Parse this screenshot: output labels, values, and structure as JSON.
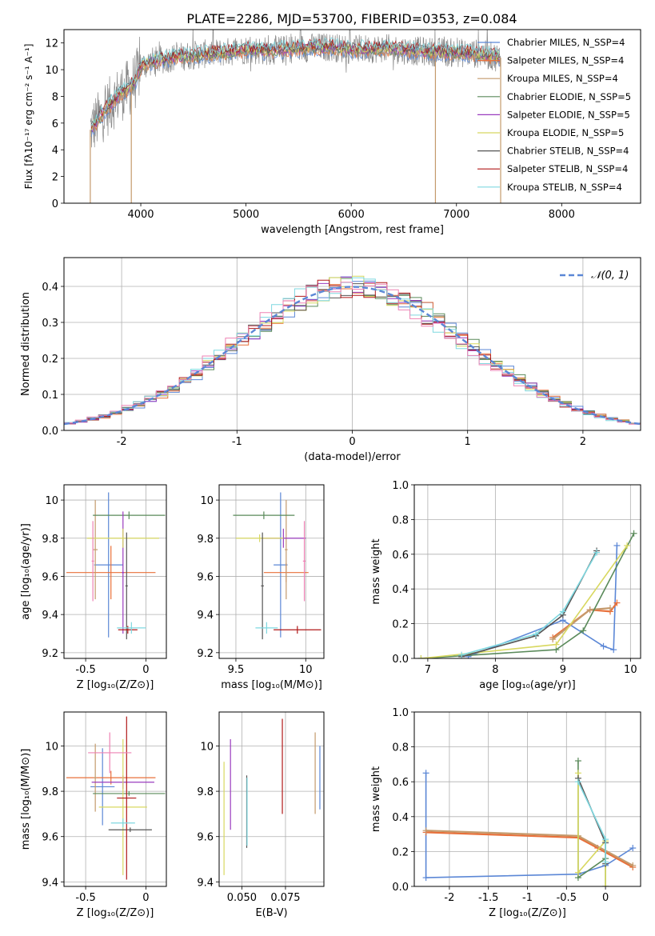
{
  "title": "PLATE=2286, MJD=53700, FIBERID=0353, z=0.084",
  "colors": {
    "c1": "#5b87d6",
    "c2": "#e8703a",
    "c3": "#c49a6c",
    "c4": "#5a8a5a",
    "c5": "#9a3cbf",
    "c6": "#d8d860",
    "c7": "#555555",
    "c8": "#b01818",
    "c9": "#7fd8e0",
    "gray": "#888888",
    "pink": "#ee82b4",
    "norm": "#5b87d6"
  },
  "chart_data": [
    {
      "id": "spectrum",
      "type": "line",
      "xlabel": "wavelength [Angstrom, rest frame]",
      "ylabel": "Flux [fλ10⁻¹⁷ erg cm⁻² s⁻¹ A⁻¹]",
      "xlim": [
        3270,
        8750
      ],
      "ylim": [
        0,
        13
      ],
      "xticks": [
        4000,
        5000,
        6000,
        7000,
        8000
      ],
      "yticks": [
        0,
        2,
        4,
        6,
        8,
        10,
        12
      ],
      "legend_position": "right",
      "series": [
        {
          "name": "Chabrier MILES, N_SSP=4",
          "color": "c1"
        },
        {
          "name": "Salpeter MILES, N_SSP=4",
          "color": "c2"
        },
        {
          "name": "Kroupa MILES, N_SSP=4",
          "color": "c3"
        },
        {
          "name": "Chabrier ELODIE, N_SSP=5",
          "color": "c4"
        },
        {
          "name": "Salpeter ELODIE, N_SSP=5",
          "color": "c5"
        },
        {
          "name": "Kroupa ELODIE, N_SSP=5",
          "color": "c6"
        },
        {
          "name": "Chabrier STELIB, N_SSP=4",
          "color": "c7"
        },
        {
          "name": "Salpeter STELIB, N_SSP=4",
          "color": "c8"
        },
        {
          "name": "Kroupa STELIB, N_SSP=4",
          "color": "c9"
        }
      ],
      "continuum": [
        [
          3520,
          5.5
        ],
        [
          3600,
          6.3
        ],
        [
          3700,
          7.3
        ],
        [
          3800,
          8.2
        ],
        [
          3900,
          8.7
        ],
        [
          3950,
          9.2
        ],
        [
          4000,
          10.2
        ],
        [
          4100,
          10.6
        ],
        [
          4300,
          10.9
        ],
        [
          4500,
          11.1
        ],
        [
          4800,
          11.3
        ],
        [
          5000,
          11.5
        ],
        [
          5200,
          11.4
        ],
        [
          5500,
          11.6
        ],
        [
          5800,
          11.7
        ],
        [
          6000,
          11.5
        ],
        [
          6300,
          11.6
        ],
        [
          6600,
          11.4
        ],
        [
          6900,
          11.3
        ],
        [
          7200,
          11.2
        ],
        [
          7420,
          10.9
        ]
      ]
    },
    {
      "id": "residuals",
      "type": "line",
      "xlabel": "(data-model)/error",
      "ylabel": "Normed distribution",
      "xlim": [
        -2.5,
        2.5
      ],
      "ylim": [
        0,
        0.48
      ],
      "xticks": [
        -2,
        -1,
        0,
        1,
        2
      ],
      "yticks": [
        0.0,
        0.1,
        0.2,
        0.3,
        0.4
      ],
      "grid": true,
      "legend": "𝒩(0, 1)",
      "legend_position": "top-right"
    },
    {
      "id": "age_vs_Z",
      "type": "scatter",
      "xlabel": "Z [log₁₀(Z/Z⊙)]",
      "ylabel": "age  [log₁₀(age/yr)]",
      "xlim": [
        -0.68,
        0.17
      ],
      "ylim": [
        9.17,
        10.08
      ],
      "xticks": [
        -0.5,
        0.0
      ],
      "yticks": [
        9.2,
        9.4,
        9.6,
        9.8,
        10.0
      ],
      "grid": true,
      "points": [
        {
          "x": -0.31,
          "xerr": 0.12,
          "y": 9.66,
          "yerr": 0.38,
          "color": "c1"
        },
        {
          "x": -0.29,
          "xerr": 0.37,
          "y": 9.62,
          "yerr": 0.14,
          "color": "c2"
        },
        {
          "x": -0.42,
          "xerr": 0.02,
          "y": 9.74,
          "yerr": 0.26,
          "color": "c3"
        },
        {
          "x": -0.14,
          "xerr": 0.3,
          "y": 9.92,
          "yerr": 0.02,
          "color": "c4"
        },
        {
          "x": -0.19,
          "xerr": 0.01,
          "y": 9.62,
          "yerr": 0.32,
          "color": "c5"
        },
        {
          "x": -0.19,
          "xerr": 0.3,
          "y": 9.8,
          "yerr": 0.05,
          "color": "c6"
        },
        {
          "x": -0.16,
          "xerr": 0.01,
          "y": 9.55,
          "yerr": 0.28,
          "color": "c7"
        },
        {
          "x": -0.15,
          "xerr": 0.08,
          "y": 9.32,
          "yerr": 0.02,
          "color": "c8"
        },
        {
          "x": -0.12,
          "xerr": 0.12,
          "y": 9.33,
          "yerr": 0.03,
          "color": "c9"
        },
        {
          "x": -0.44,
          "xerr": 0.01,
          "y": 9.68,
          "yerr": 0.21,
          "color": "pink"
        }
      ]
    },
    {
      "id": "age_vs_mass",
      "type": "scatter",
      "xlabel": "mass [log₁₀(M/M⊙)]",
      "ylabel": "",
      "xlim": [
        9.38,
        10.13
      ],
      "ylim": [
        9.17,
        10.08
      ],
      "xticks": [
        9.5,
        10.0
      ],
      "yticks": [
        9.2,
        9.4,
        9.6,
        9.8,
        10.0
      ],
      "grid": true,
      "points": [
        {
          "x": 9.82,
          "xerr": 0.05,
          "y": 9.66,
          "yerr": 0.38,
          "color": "c1"
        },
        {
          "x": 9.86,
          "xerr": 0.16,
          "y": 9.62,
          "yerr": 0.05,
          "color": "c2"
        },
        {
          "x": 9.86,
          "xerr": 0.01,
          "y": 9.74,
          "yerr": 0.26,
          "color": "c3"
        },
        {
          "x": 9.7,
          "xerr": 0.22,
          "y": 9.92,
          "yerr": 0.02,
          "color": "c4"
        },
        {
          "x": 9.84,
          "xerr": 0.16,
          "y": 9.8,
          "yerr": 0.05,
          "color": "c5"
        },
        {
          "x": 9.67,
          "xerr": 0.17,
          "y": 9.8,
          "yerr": 0.02,
          "color": "c6"
        },
        {
          "x": 9.69,
          "xerr": 0.01,
          "y": 9.55,
          "yerr": 0.28,
          "color": "c7"
        },
        {
          "x": 9.94,
          "xerr": 0.17,
          "y": 9.32,
          "yerr": 0.02,
          "color": "c8"
        },
        {
          "x": 9.72,
          "xerr": 0.08,
          "y": 9.33,
          "yerr": 0.03,
          "color": "c9"
        },
        {
          "x": 9.99,
          "xerr": 0.01,
          "y": 9.68,
          "yerr": 0.21,
          "color": "pink"
        }
      ]
    },
    {
      "id": "weight_vs_age",
      "type": "line",
      "xlabel": "age  [log₁₀(age/yr)]",
      "ylabel": "mass weight",
      "xlim": [
        6.8,
        10.15
      ],
      "ylim": [
        0,
        1
      ],
      "xticks": [
        7,
        8,
        9,
        10
      ],
      "yticks": [
        0.0,
        0.2,
        0.4,
        0.6,
        0.8,
        1.0
      ],
      "grid": true,
      "series": [
        {
          "color": "c1",
          "x": [
            7.6,
            9.0,
            9.6,
            9.75,
            9.8
          ],
          "y": [
            0.01,
            0.22,
            0.07,
            0.05,
            0.65
          ]
        },
        {
          "color": "c2",
          "x": [
            8.85,
            9.4,
            9.7,
            9.8
          ],
          "y": [
            0.12,
            0.28,
            0.27,
            0.32
          ]
        },
        {
          "color": "c3",
          "x": [
            8.85,
            9.4,
            9.7
          ],
          "y": [
            0.11,
            0.28,
            0.29
          ]
        },
        {
          "color": "c4",
          "x": [
            6.9,
            8.9,
            9.3,
            10.05
          ],
          "y": [
            0.0,
            0.05,
            0.16,
            0.72
          ]
        },
        {
          "color": "c6",
          "x": [
            6.9,
            8.9,
            9.95
          ],
          "y": [
            0.0,
            0.08,
            0.65
          ]
        },
        {
          "color": "c7",
          "x": [
            7.5,
            8.6,
            9.0,
            9.5
          ],
          "y": [
            0.01,
            0.13,
            0.25,
            0.62
          ]
        },
        {
          "color": "c9",
          "x": [
            7.5,
            8.6,
            9.0,
            9.5
          ],
          "y": [
            0.02,
            0.14,
            0.27,
            0.61
          ]
        }
      ]
    },
    {
      "id": "mass_vs_Z",
      "type": "scatter",
      "xlabel": "Z [log₁₀(Z/Z⊙)]",
      "ylabel": "mass [log₁₀(M/M⊙)]",
      "xlim": [
        -0.68,
        0.17
      ],
      "ylim": [
        9.38,
        10.15
      ],
      "xticks": [
        -0.5,
        0.0
      ],
      "yticks": [
        9.4,
        9.6,
        9.8,
        10.0
      ],
      "grid": true,
      "points": [
        {
          "x": -0.36,
          "xerr": 0.1,
          "y": 9.82,
          "yerr": 0.17,
          "color": "c1"
        },
        {
          "x": -0.29,
          "xerr": 0.37,
          "y": 9.86,
          "yerr": 0.03,
          "color": "c2"
        },
        {
          "x": -0.42,
          "xerr": 0.01,
          "y": 9.86,
          "yerr": 0.15,
          "color": "c3"
        },
        {
          "x": -0.14,
          "xerr": 0.3,
          "y": 9.79,
          "yerr": 0.01,
          "color": "c4"
        },
        {
          "x": -0.19,
          "xerr": 0.26,
          "y": 9.84,
          "yerr": 0.03,
          "color": "c5"
        },
        {
          "x": -0.19,
          "xerr": 0.2,
          "y": 9.73,
          "yerr": 0.3,
          "color": "c6"
        },
        {
          "x": -0.13,
          "xerr": 0.18,
          "y": 9.63,
          "yerr": 0.01,
          "color": "c7"
        },
        {
          "x": -0.16,
          "xerr": 0.08,
          "y": 9.77,
          "yerr": 0.36,
          "color": "c8"
        },
        {
          "x": -0.19,
          "xerr": 0.1,
          "y": 9.66,
          "yerr": 0.02,
          "color": "c9"
        },
        {
          "x": -0.3,
          "xerr": 0.18,
          "y": 9.97,
          "yerr": 0.09,
          "color": "pink"
        }
      ]
    },
    {
      "id": "mass_vs_ebv",
      "type": "scatter",
      "xlabel": "E(B-V)",
      "ylabel": "",
      "xlim": [
        0.037,
        0.097
      ],
      "ylim": [
        9.38,
        10.15
      ],
      "xticks": [
        0.05,
        0.075
      ],
      "tick_labels": [
        "0.050",
        "0.075"
      ],
      "yticks": [
        9.4,
        9.6,
        9.8,
        10.0
      ],
      "grid": true,
      "points": [
        {
          "x": 0.0435,
          "y": 9.83,
          "yerr": 0.2,
          "color": "c5"
        },
        {
          "x": 0.0398,
          "y": 9.68,
          "yerr": 0.25,
          "color": "c6"
        },
        {
          "x": 0.0528,
          "y": 9.71,
          "yerr": 0.16,
          "color": "c7"
        },
        {
          "x": 0.053,
          "y": 9.71,
          "yerr": 0.15,
          "color": "c9"
        },
        {
          "x": 0.0732,
          "y": 9.91,
          "yerr": 0.21,
          "color": "c8"
        },
        {
          "x": 0.092,
          "y": 9.88,
          "yerr": 0.18,
          "color": "c3"
        },
        {
          "x": 0.0947,
          "y": 9.86,
          "yerr": 0.14,
          "color": "c1"
        }
      ]
    },
    {
      "id": "weight_vs_Z",
      "type": "line",
      "xlabel": "Z [log₁₀(Z/Z⊙)]",
      "ylabel": "mass weight",
      "xlim": [
        -2.45,
        0.45
      ],
      "ylim": [
        0,
        1
      ],
      "xticks": [
        -2.0,
        -1.5,
        -1.0,
        -0.5,
        0.0
      ],
      "yticks": [
        0.0,
        0.2,
        0.4,
        0.6,
        0.8,
        1.0
      ],
      "grid": true,
      "series": [
        {
          "color": "c1",
          "x": [
            -2.3,
            -2.3,
            -0.35,
            0.0,
            0.35
          ],
          "y": [
            0.65,
            0.05,
            0.07,
            0.12,
            0.22
          ]
        },
        {
          "color": "c2",
          "x": [
            -2.3,
            -0.35,
            -0.1,
            0.35
          ],
          "y": [
            0.31,
            0.28,
            0.22,
            0.11
          ]
        },
        {
          "color": "c3",
          "x": [
            -2.3,
            -0.35,
            0.35
          ],
          "y": [
            0.32,
            0.29,
            0.12
          ]
        },
        {
          "color": "c4",
          "x": [
            -0.35,
            -0.35,
            0.0,
            0.0
          ],
          "y": [
            0.72,
            0.05,
            0.16,
            0.0
          ]
        },
        {
          "color": "c6",
          "x": [
            -0.35,
            -0.35,
            0.0,
            0.0
          ],
          "y": [
            0.65,
            0.08,
            0.26,
            0.0
          ]
        },
        {
          "color": "c7",
          "x": [
            -0.35,
            0.0,
            0.0
          ],
          "y": [
            0.62,
            0.25,
            0.13
          ]
        },
        {
          "color": "c9",
          "x": [
            -0.35,
            0.0,
            0.0
          ],
          "y": [
            0.6,
            0.27,
            0.14
          ]
        }
      ]
    }
  ]
}
